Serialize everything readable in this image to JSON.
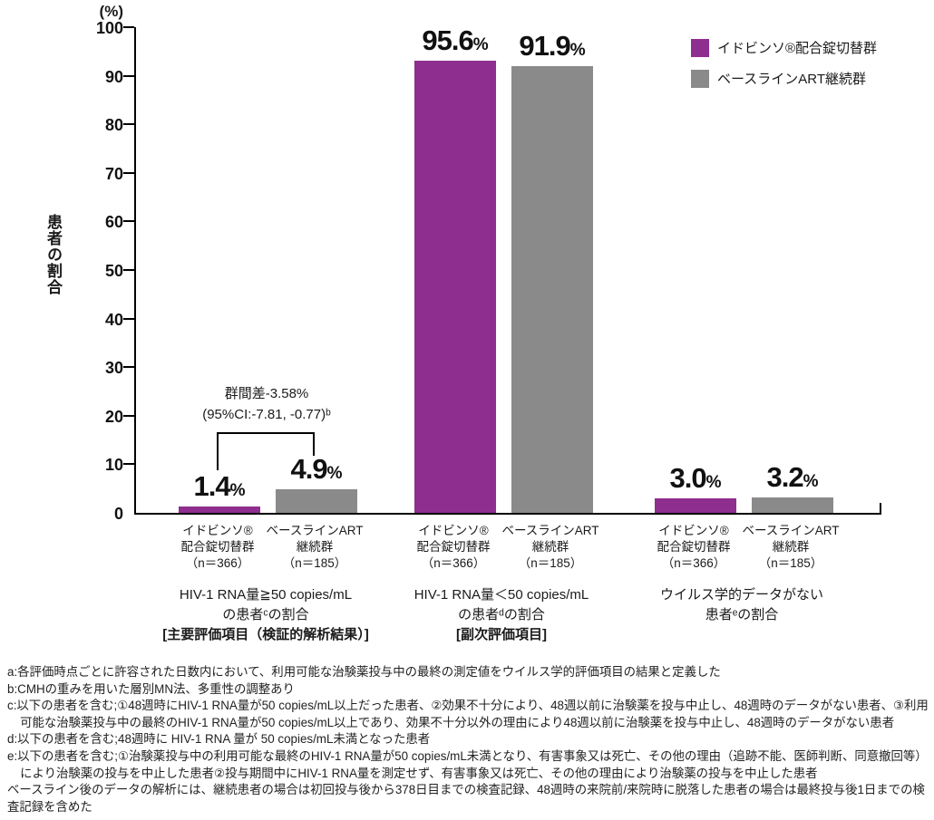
{
  "colors": {
    "switch_group": "#8e2f8f",
    "baseline_group": "#8a8a8a",
    "axis": "#000000",
    "text": "#1a1a1a"
  },
  "legend": {
    "items": [
      {
        "label": "イドビンソ®配合錠切替群",
        "color": "#8e2f8f"
      },
      {
        "label": "ベースラインART継続群",
        "color": "#8a8a8a"
      }
    ]
  },
  "annotation": {
    "line1": "群間差-3.58%",
    "line2": "(95%CI:-7.81, -0.77)ᵇ"
  },
  "chart_data": {
    "type": "bar",
    "title": "",
    "ylabel": "患者の割合",
    "y_axis_unit": "(%)",
    "unit": "%",
    "ylim": [
      0,
      100
    ],
    "yticks": [
      0,
      10,
      20,
      30,
      40,
      50,
      60,
      70,
      80,
      90,
      100
    ],
    "grid": false,
    "legend_position": "top-right",
    "series_names": [
      "イドビンソ®配合錠切替群",
      "ベースラインART継続群"
    ],
    "groups": [
      {
        "caption_line1": "HIV-1 RNA量≧50 copies/mL",
        "caption_line2": "の患者ᶜの割合",
        "caption_line3": "[主要評価項目（検証的解析結果）]",
        "bars": [
          {
            "series": "イドビンソ®配合錠切替群",
            "value": 1.4,
            "value_label": "1.4",
            "label_line1": "イドビンソ®",
            "label_line2": "配合錠切替群",
            "label_line3": "（n＝366）"
          },
          {
            "series": "ベースラインART継続群",
            "value": 4.9,
            "value_label": "4.9",
            "label_line1": "ベースラインART",
            "label_line2": "継続群",
            "label_line3": "（n＝185）"
          }
        ]
      },
      {
        "caption_line1": "HIV-1 RNA量＜50 copies/mL",
        "caption_line2": "の患者ᵈの割合",
        "caption_line3": "[副次評価項目]",
        "bars": [
          {
            "series": "イドビンソ®配合錠切替群",
            "value": 95.6,
            "value_label": "95.6",
            "label_line1": "イドビンソ®",
            "label_line2": "配合錠切替群",
            "label_line3": "（n＝366）"
          },
          {
            "series": "ベースラインART継続群",
            "value": 91.9,
            "value_label": "91.9",
            "label_line1": "ベースラインART",
            "label_line2": "継続群",
            "label_line3": "（n＝185）"
          }
        ]
      },
      {
        "caption_line1": "ウイルス学的データがない",
        "caption_line2": "患者ᵉの割合",
        "caption_line3": "",
        "bars": [
          {
            "series": "イドビンソ®配合錠切替群",
            "value": 3.0,
            "value_label": "3.0",
            "label_line1": "イドビンソ®",
            "label_line2": "配合錠切替群",
            "label_line3": "（n＝366）"
          },
          {
            "series": "ベースラインART継続群",
            "value": 3.2,
            "value_label": "3.2",
            "label_line1": "ベースラインART",
            "label_line2": "継続群",
            "label_line3": "（n＝185）"
          }
        ]
      }
    ]
  },
  "footnotes": [
    "a:各評価時点ごとに許容された日数内において、利用可能な治験薬投与中の最終の測定値をウイルス学的評価項目の結果と定義した",
    "b:CMHの重みを用いた層別MN法、多重性の調整あり",
    "c:以下の患者を含む;①48週時にHIV-1 RNA量が50 copies/mL以上だった患者、②効果不十分により、48週以前に治験薬を投与中止し、48週時のデータがない患者、③利用可能な治験薬投与中の最終のHIV-1 RNA量が50 copies/mL以上であり、効果不十分以外の理由により48週以前に治験薬を投与中止し、48週時のデータがない患者",
    "d:以下の患者を含む;48週時に HIV-1 RNA 量が 50 copies/mL未満となった患者",
    "e:以下の患者を含む;①治験薬投与中の利用可能な最終のHIV-1 RNA量が50 copies/mL未満となり、有害事象又は死亡、その他の理由（追跡不能、医師判断、同意撤回等）により治験薬の投与を中止した患者②投与期間中にHIV-1 RNA量を測定せず、有害事象又は死亡、その他の理由により治験薬の投与を中止した患者",
    "ベースライン後のデータの解析には、継続患者の場合は初回投与後から378日目までの検査記録、48週時の来院前/来院時に脱落した患者の場合は最終投与後1日までの検査記録を含めた"
  ]
}
